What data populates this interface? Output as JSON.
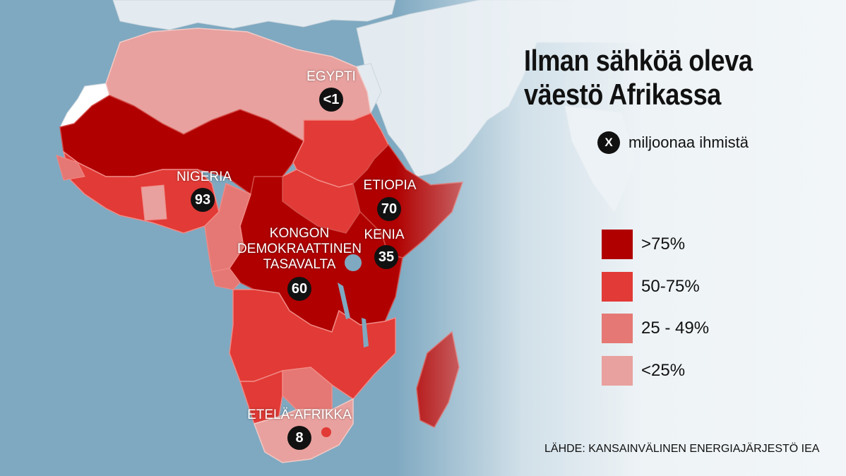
{
  "title": {
    "line1": "Ilman sähköä oleva",
    "line2": "väestö Afrikassa"
  },
  "unit_note": {
    "badge": "X",
    "text": "miljoonaa ihmistä"
  },
  "legend": [
    {
      "label": ">75%",
      "color": "#b00000"
    },
    {
      "label": "50-75%",
      "color": "#e23a36"
    },
    {
      "label": "25 - 49%",
      "color": "#e57874"
    },
    {
      "label": "<25%",
      "color": "#e8a19e"
    }
  ],
  "countries": {
    "egypt": {
      "name": "EGYPTI",
      "value": "<1"
    },
    "nigeria": {
      "name": "NIGERIA",
      "value": "93"
    },
    "ethiopia": {
      "name": "ETIOPIA",
      "value": "70"
    },
    "kenya": {
      "name": "KENIA",
      "value": "35"
    },
    "drc": {
      "name1": "KONGON",
      "name2": "DEMOKRAATTINEN",
      "name3": "TASAVALTA",
      "value": "60"
    },
    "south_africa": {
      "name": "ETELÄ-AFRIKKA",
      "value": "8"
    }
  },
  "source": "LÄHDE: KANSAINVÄLINEN ENERGIAJÄRJESTÖ IEA",
  "colors": {
    "sea": "#7fa9c1",
    "land_other": "#e4ebf0",
    "no_data": "#ffffff"
  }
}
